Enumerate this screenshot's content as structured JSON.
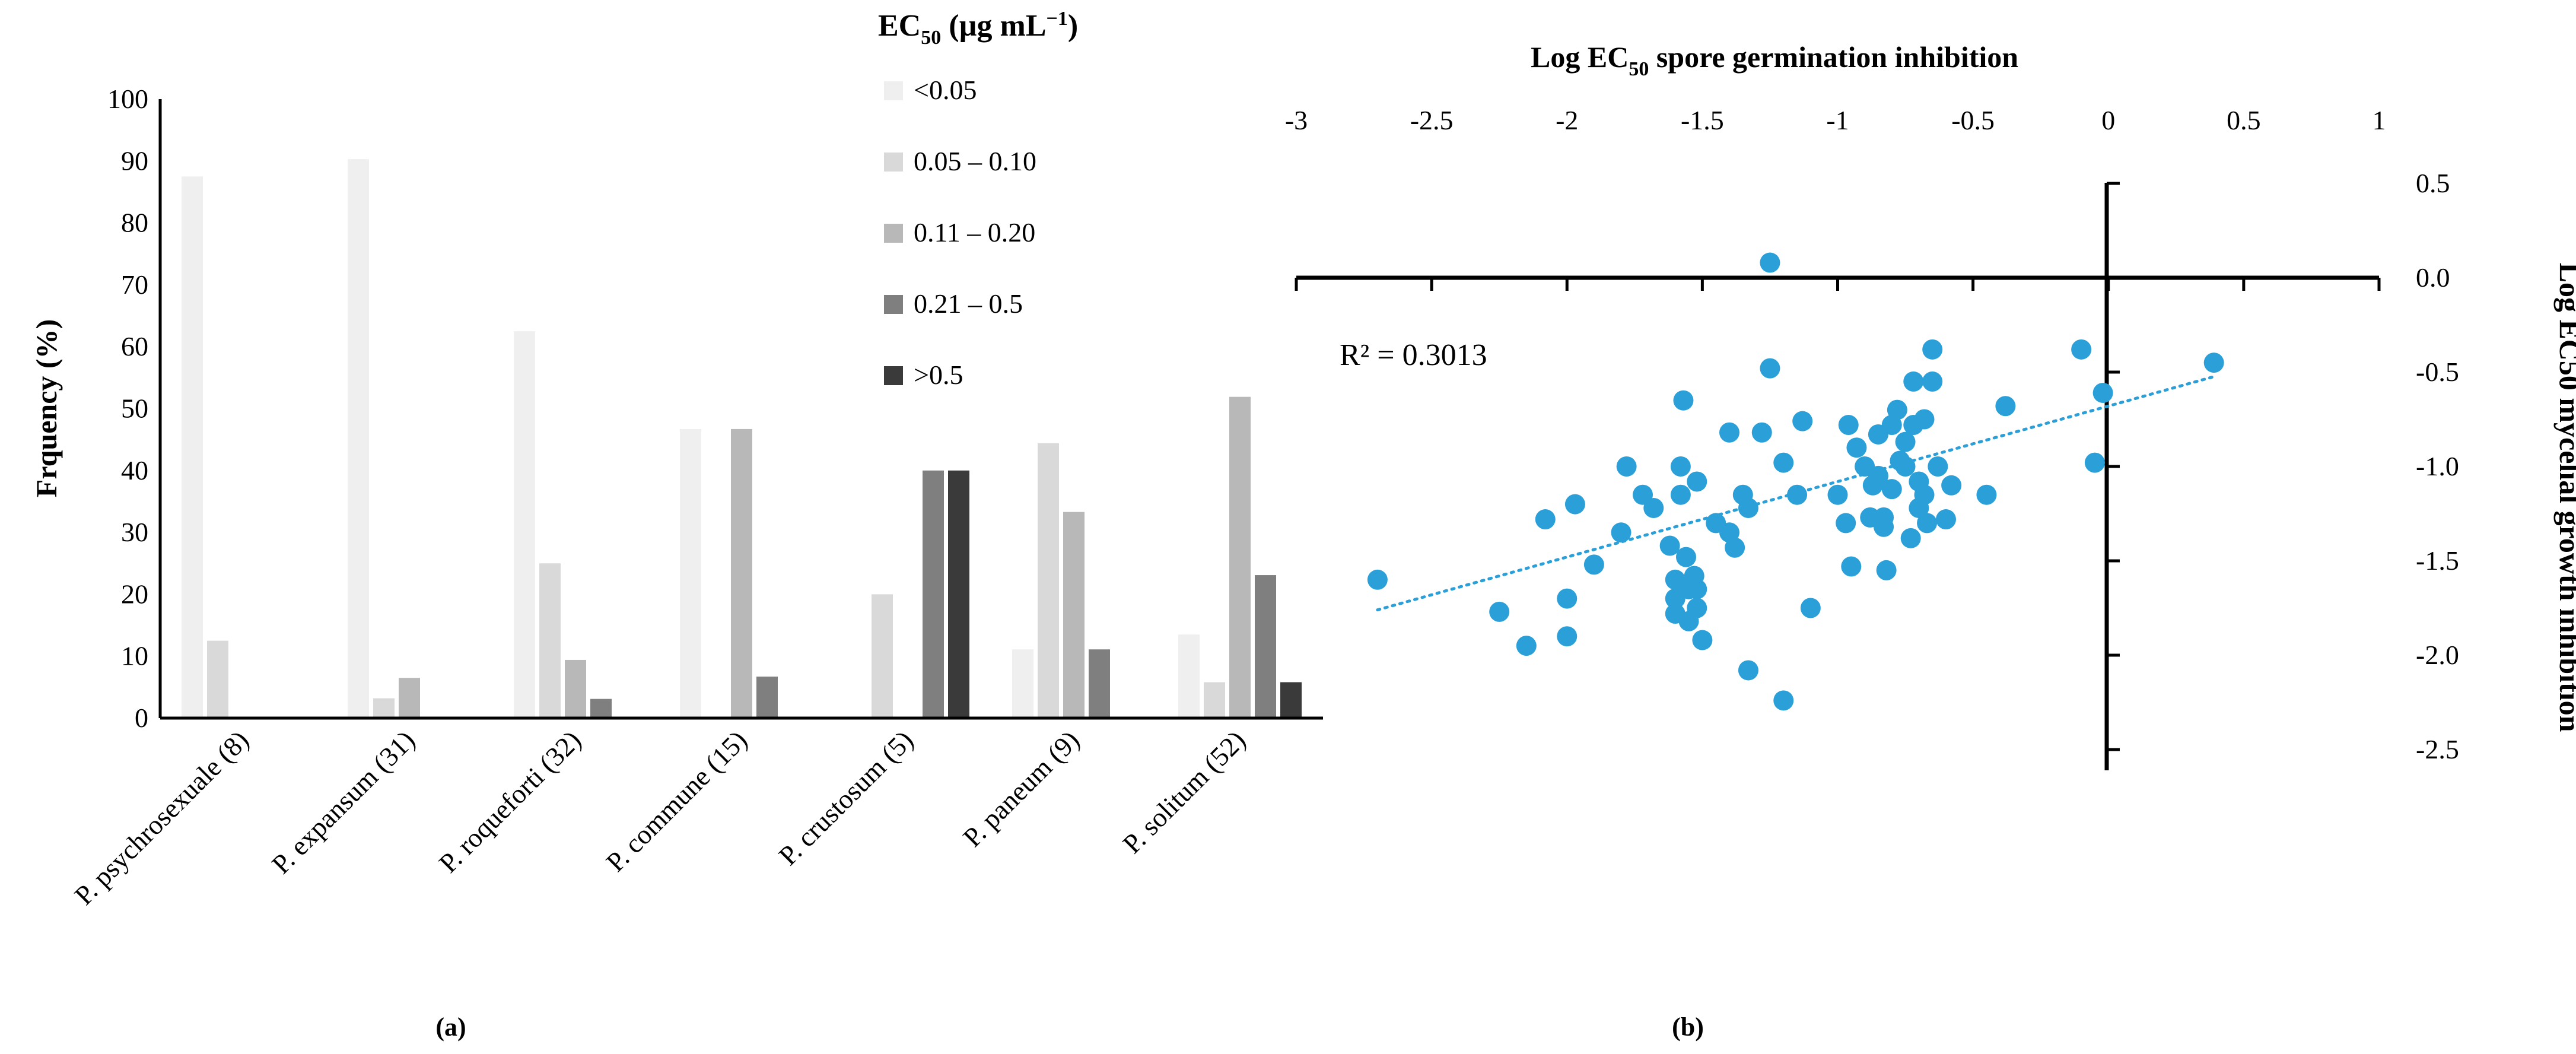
{
  "chart_data": [
    {
      "type": "bar",
      "panel_label": "(a)",
      "title": "",
      "xlabel": "",
      "ylabel": "Frquency (%)",
      "ylim": [
        0,
        100
      ],
      "yticks": [
        "0",
        "10",
        "20",
        "30",
        "40",
        "50",
        "60",
        "70",
        "80",
        "90",
        "100"
      ],
      "legend": {
        "title_main": "EC",
        "title_sub": "50",
        "title_tail": " (µg mL",
        "title_sup": "−1",
        "title_end": ")",
        "placement": "top-right"
      },
      "categories": [
        "P. psychrosexuale (8)",
        "P. expansum (31)",
        "P. roqueforti (32)",
        "P. commune (15)",
        "P. crustosum (5)",
        "P. paneum (9)",
        "P. solitum (52)"
      ],
      "series": [
        {
          "name": "<0.05",
          "color": "#efefef",
          "values": [
            87.5,
            90.3,
            62.5,
            46.7,
            0,
            11.1,
            13.5
          ]
        },
        {
          "name": "0.05 – 0.10",
          "color": "#d9d9d9",
          "values": [
            12.5,
            3.2,
            25.0,
            0,
            20.0,
            44.4,
            5.8
          ]
        },
        {
          "name": "0.11 – 0.20",
          "color": "#b8b8b8",
          "values": [
            0,
            6.5,
            9.4,
            46.7,
            0,
            33.3,
            51.9
          ]
        },
        {
          "name": "0.21 – 0.5",
          "color": "#7f7f7f",
          "values": [
            0,
            0,
            3.1,
            6.7,
            40.0,
            11.1,
            23.1
          ]
        },
        {
          "name": ">0.5",
          "color": "#3a3a3a",
          "values": [
            0,
            0,
            0,
            0,
            40.0,
            0,
            5.8
          ]
        }
      ]
    },
    {
      "type": "scatter",
      "panel_label": "(b)",
      "xlabel_pre": "Log EC",
      "xlabel_sub": "50",
      "xlabel_post": " spore germination inhibition",
      "ylabel": "Log EC50 mycelial growth inhibition",
      "xlim": [
        -3,
        1
      ],
      "ylim": [
        -2.5,
        0.5
      ],
      "xticks": [
        "-3",
        "-2.5",
        "-2",
        "-1.5",
        "-1",
        "-0.5",
        "0",
        "0.5",
        "1"
      ],
      "yticks": [
        "0.5",
        "0.0",
        "-0.5",
        "-1.0",
        "-1.5",
        "-2.0",
        "-2.5"
      ],
      "annotation": "R² = 0.3013",
      "marker_color": "#2a9fd8",
      "trendline": {
        "slope": 0.4,
        "intercept": -0.68,
        "x_range": [
          -2.7,
          0.4
        ],
        "style": "dotted"
      },
      "points": [
        [
          -2.7,
          -1.6
        ],
        [
          -2.25,
          -1.77
        ],
        [
          -2.15,
          -1.95
        ],
        [
          -2.08,
          -1.28
        ],
        [
          -2.0,
          -1.7
        ],
        [
          -2.0,
          -1.9
        ],
        [
          -1.97,
          -1.2
        ],
        [
          -1.9,
          -1.52
        ],
        [
          -1.8,
          -1.35
        ],
        [
          -1.78,
          -1.0
        ],
        [
          -1.72,
          -1.15
        ],
        [
          -1.68,
          -1.22
        ],
        [
          -1.62,
          -1.42
        ],
        [
          -1.6,
          -1.6
        ],
        [
          -1.6,
          -1.7
        ],
        [
          -1.6,
          -1.78
        ],
        [
          -1.58,
          -1.0
        ],
        [
          -1.58,
          -1.15
        ],
        [
          -1.57,
          -0.65
        ],
        [
          -1.56,
          -1.48
        ],
        [
          -1.55,
          -1.65
        ],
        [
          -1.55,
          -1.82
        ],
        [
          -1.53,
          -1.58
        ],
        [
          -1.52,
          -1.65
        ],
        [
          -1.52,
          -1.75
        ],
        [
          -1.52,
          -1.08
        ],
        [
          -1.5,
          -1.92
        ],
        [
          -1.45,
          -1.3
        ],
        [
          -1.4,
          -1.35
        ],
        [
          -1.4,
          -0.82
        ],
        [
          -1.38,
          -1.43
        ],
        [
          -1.35,
          -1.15
        ],
        [
          -1.33,
          -1.22
        ],
        [
          -1.33,
          -2.08
        ],
        [
          -1.28,
          -0.82
        ],
        [
          -1.25,
          -0.48
        ],
        [
          -1.25,
          0.08
        ],
        [
          -1.2,
          -2.24
        ],
        [
          -1.2,
          -0.98
        ],
        [
          -1.15,
          -1.15
        ],
        [
          -1.13,
          -0.76
        ],
        [
          -1.1,
          -1.75
        ],
        [
          -1.0,
          -1.15
        ],
        [
          -0.97,
          -1.3
        ],
        [
          -0.96,
          -0.78
        ],
        [
          -0.95,
          -1.53
        ],
        [
          -0.93,
          -0.9
        ],
        [
          -0.9,
          -1.0
        ],
        [
          -0.88,
          -1.27
        ],
        [
          -0.87,
          -1.1
        ],
        [
          -0.85,
          -1.05
        ],
        [
          -0.85,
          -0.83
        ],
        [
          -0.83,
          -1.32
        ],
        [
          -0.83,
          -1.27
        ],
        [
          -0.82,
          -1.55
        ],
        [
          -0.8,
          -0.78
        ],
        [
          -0.8,
          -1.12
        ],
        [
          -0.78,
          -0.7
        ],
        [
          -0.77,
          -0.97
        ],
        [
          -0.75,
          -0.87
        ],
        [
          -0.75,
          -1.0
        ],
        [
          -0.73,
          -1.38
        ],
        [
          -0.72,
          -0.55
        ],
        [
          -0.72,
          -0.78
        ],
        [
          -0.7,
          -1.08
        ],
        [
          -0.7,
          -1.22
        ],
        [
          -0.68,
          -0.75
        ],
        [
          -0.68,
          -1.15
        ],
        [
          -0.67,
          -1.3
        ],
        [
          -0.65,
          -0.38
        ],
        [
          -0.65,
          -0.55
        ],
        [
          -0.63,
          -1.0
        ],
        [
          -0.6,
          -1.28
        ],
        [
          -0.58,
          -1.1
        ],
        [
          -0.45,
          -1.15
        ],
        [
          -0.38,
          -0.68
        ],
        [
          -0.1,
          -0.38
        ],
        [
          -0.05,
          -0.98
        ],
        [
          -0.02,
          -0.61
        ],
        [
          0.39,
          -0.45
        ]
      ]
    }
  ]
}
